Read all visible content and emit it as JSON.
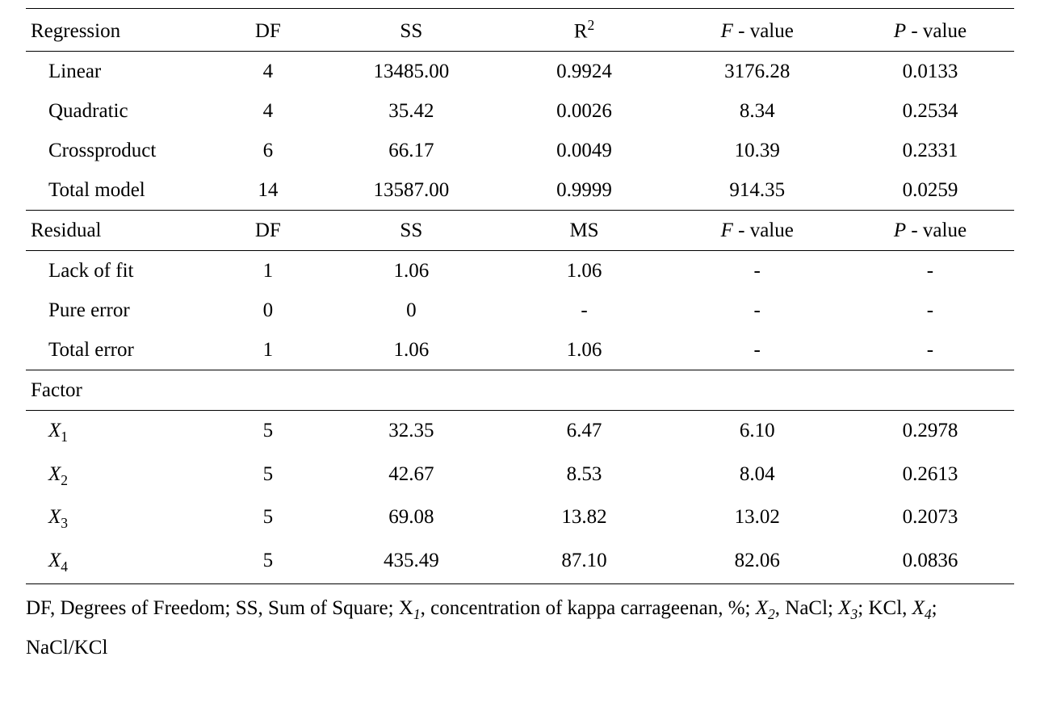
{
  "table": {
    "type": "table",
    "font_family": "Times New Roman",
    "font_size_pt": 19,
    "text_color": "#000000",
    "background_color": "#ffffff",
    "rule_color": "#000000",
    "column_widths_pct": [
      19,
      11,
      18,
      17,
      18,
      17
    ],
    "column_align": [
      "left",
      "center",
      "center",
      "center",
      "center",
      "center"
    ],
    "regression_header": {
      "c1": "Regression",
      "c2": "DF",
      "c3": "SS",
      "c4": "R²",
      "c5_prefix": "F",
      "c5_suffix": " - value",
      "c6_prefix": "P",
      "c6_suffix": " - value"
    },
    "regression_rows": [
      {
        "label": "Linear",
        "df": "4",
        "ss": "13485.00",
        "c4": "0.9924",
        "f": "3176.28",
        "p": "0.0133"
      },
      {
        "label": "Quadratic",
        "df": "4",
        "ss": "35.42",
        "c4": "0.0026",
        "f": "8.34",
        "p": "0.2534"
      },
      {
        "label": "Crossproduct",
        "df": "6",
        "ss": "66.17",
        "c4": "0.0049",
        "f": "10.39",
        "p": "0.2331"
      },
      {
        "label": "Total model",
        "df": "14",
        "ss": "13587.00",
        "c4": "0.9999",
        "f": "914.35",
        "p": "0.0259"
      }
    ],
    "residual_header": {
      "c1": "Residual",
      "c2": "DF",
      "c3": "SS",
      "c4": "MS",
      "c5_prefix": "F",
      "c5_suffix": " - value",
      "c6_prefix": "P",
      "c6_suffix": " - value"
    },
    "residual_rows": [
      {
        "label": "Lack of fit",
        "df": "1",
        "ss": "1.06",
        "c4": "1.06",
        "f": "-",
        "p": "-"
      },
      {
        "label": "Pure error",
        "df": "0",
        "ss": "0",
        "c4": "-",
        "f": "-",
        "p": "-"
      },
      {
        "label": "Total error",
        "df": "1",
        "ss": "1.06",
        "c4": "1.06",
        "f": "-",
        "p": "-"
      }
    ],
    "factor_header": {
      "c1": "Factor"
    },
    "factor_rows": [
      {
        "sym": "X",
        "sub": "1",
        "df": "5",
        "ss": "32.35",
        "c4": "6.47",
        "f": "6.10",
        "p": "0.2978"
      },
      {
        "sym": "X",
        "sub": "2",
        "df": "5",
        "ss": "42.67",
        "c4": "8.53",
        "f": "8.04",
        "p": "0.2613"
      },
      {
        "sym": "X",
        "sub": "3",
        "df": "5",
        "ss": "69.08",
        "c4": "13.82",
        "f": "13.02",
        "p": "0.2073"
      },
      {
        "sym": "X",
        "sub": "4",
        "df": "5",
        "ss": "435.49",
        "c4": "87.10",
        "f": "82.06",
        "p": "0.0836"
      }
    ]
  },
  "footnote": {
    "seg1": "DF, Degrees of Freedom; SS, Sum of Square; X",
    "sub1": "1",
    "seg2": ", concentration of kappa carrageenan, %; ",
    "x2_sym": "X",
    "x2_sub": "2",
    "x2_tail": ", NaCl; ",
    "x3_sym": "X",
    "x3_sub": "3",
    "x3_tail": "; KCl, ",
    "x4_sym": "X",
    "x4_sub": "4",
    "x4_tail": "; NaCl/KCl"
  }
}
